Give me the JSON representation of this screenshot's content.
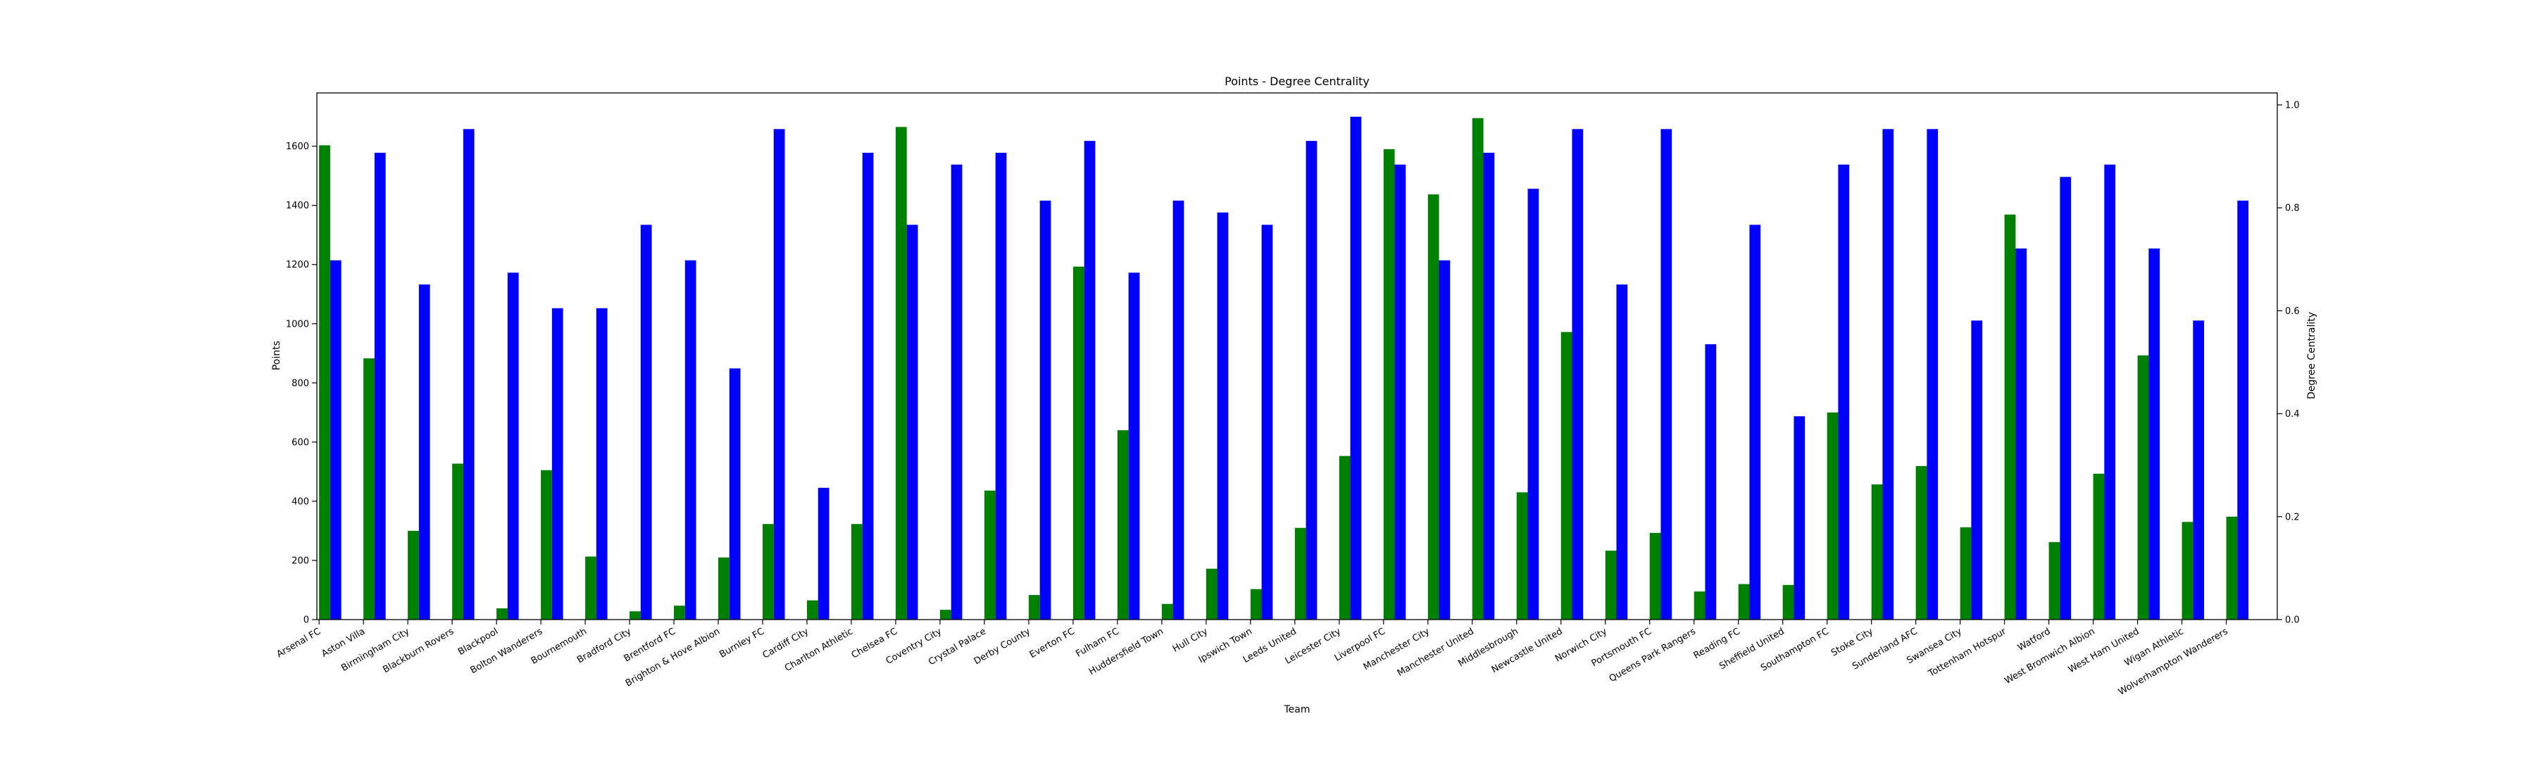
{
  "chart_data": {
    "type": "bar",
    "title": "Points - Degree Centrality",
    "xlabel": "Team",
    "ylabel": "Points",
    "y2label": "Degree Centrality",
    "ylim": [
      0,
      1780
    ],
    "y2lim": [
      0,
      1.0232
    ],
    "yticks": [
      0,
      200,
      400,
      600,
      800,
      1000,
      1200,
      1400,
      1600
    ],
    "y2ticks": [
      "0.0",
      "0.2",
      "0.4",
      "0.6",
      "0.8",
      "1.0"
    ],
    "grid": false,
    "colors": {
      "points": "#008000",
      "centrality": "#0000ff"
    },
    "categories": [
      "Arsenal FC",
      "Aston Villa",
      "Birmingham City",
      "Blackburn Rovers",
      "Blackpool",
      "Bolton Wanderers",
      "Bournemouth",
      "Bradford City",
      "Brentford FC",
      "Brighton & Hove Albion",
      "Burnley FC",
      "Cardiff City",
      "Charlton Athletic",
      "Chelsea FC",
      "Coventry City",
      "Crystal Palace",
      "Derby County",
      "Everton FC",
      "Fulham FC",
      "Huddersfield Town",
      "Hull City",
      "Ipswich Town",
      "Leeds United",
      "Leicester City",
      "Liverpool FC",
      "Manchester City",
      "Manchester United",
      "Middlesbrough",
      "Newcastle United",
      "Norwich City",
      "Portsmouth FC",
      "Queens Park Rangers",
      "Reading FC",
      "Sheffield United",
      "Southampton FC",
      "Stoke City",
      "Sunderland AFC",
      "Swansea City",
      "Tottenham Hotspur",
      "Watford",
      "West Bromwich Albion",
      "West Ham United",
      "Wigan Athletic",
      "Wolverhampton Wanderers"
    ],
    "series": [
      {
        "axis": "left",
        "values": [
          1603,
          883,
          300,
          527,
          38,
          505,
          213,
          28,
          47,
          210,
          323,
          65,
          323,
          1665,
          33,
          436,
          83,
          1193,
          640,
          53,
          172,
          103,
          310,
          553,
          1590,
          1437,
          1695,
          430,
          972,
          233,
          293,
          95,
          120,
          117,
          700,
          457,
          519,
          312,
          1369,
          262,
          493,
          893,
          330,
          348
        ]
      },
      {
        "axis": "right",
        "values": [
          0.698,
          0.907,
          0.651,
          0.953,
          0.674,
          0.605,
          0.605,
          0.767,
          0.698,
          0.488,
          0.953,
          0.256,
          0.907,
          0.767,
          0.884,
          0.907,
          0.814,
          0.93,
          0.674,
          0.814,
          0.791,
          0.767,
          0.93,
          0.977,
          0.884,
          0.698,
          0.907,
          0.837,
          0.953,
          0.651,
          0.953,
          0.535,
          0.767,
          0.395,
          0.884,
          0.953,
          0.953,
          0.581,
          0.721,
          0.86,
          0.884,
          0.721,
          0.581,
          0.814
        ]
      }
    ]
  }
}
